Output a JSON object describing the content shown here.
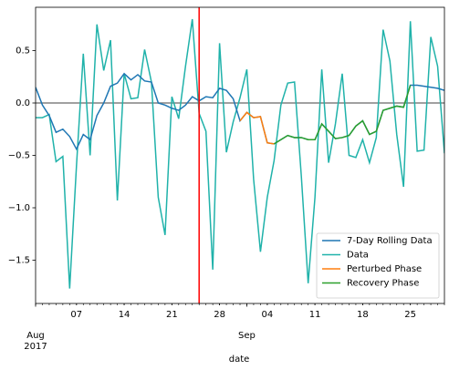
{
  "chart_data": {
    "type": "line",
    "xlabel": "date",
    "x": [
      "2017-08-01",
      "2017-08-02",
      "2017-08-03",
      "2017-08-04",
      "2017-08-05",
      "2017-08-06",
      "2017-08-07",
      "2017-08-08",
      "2017-08-09",
      "2017-08-10",
      "2017-08-11",
      "2017-08-12",
      "2017-08-13",
      "2017-08-14",
      "2017-08-15",
      "2017-08-16",
      "2017-08-17",
      "2017-08-18",
      "2017-08-19",
      "2017-08-20",
      "2017-08-21",
      "2017-08-22",
      "2017-08-23",
      "2017-08-24",
      "2017-08-25",
      "2017-08-26",
      "2017-08-27",
      "2017-08-28",
      "2017-08-29",
      "2017-08-30",
      "2017-08-31",
      "2017-09-01",
      "2017-09-02",
      "2017-09-03",
      "2017-09-04",
      "2017-09-05",
      "2017-09-06",
      "2017-09-07",
      "2017-09-08",
      "2017-09-09",
      "2017-09-10",
      "2017-09-11",
      "2017-09-12",
      "2017-09-13",
      "2017-09-14",
      "2017-09-15",
      "2017-09-16",
      "2017-09-17",
      "2017-09-18",
      "2017-09-19",
      "2017-09-20",
      "2017-09-21",
      "2017-09-22",
      "2017-09-23",
      "2017-09-24",
      "2017-09-25",
      "2017-09-26",
      "2017-09-27",
      "2017-09-28",
      "2017-09-29",
      "2017-09-30"
    ],
    "series": [
      {
        "name": "7-Day Rolling Data",
        "color": "#1f77b4",
        "values": [
          0.15,
          -0.02,
          -0.12,
          -0.28,
          -0.25,
          -0.32,
          -0.44,
          -0.3,
          -0.35,
          -0.12,
          0.0,
          0.16,
          0.19,
          0.28,
          0.22,
          0.27,
          0.21,
          0.2,
          0.0,
          -0.02,
          -0.05,
          -0.07,
          -0.02,
          0.06,
          0.02,
          0.06,
          0.05,
          0.14,
          0.12,
          0.04,
          -0.17,
          -0.09,
          -0.14,
          -0.13,
          -0.38,
          -0.39,
          -0.35,
          -0.31,
          -0.33,
          -0.33,
          -0.35,
          -0.35,
          -0.2,
          -0.27,
          -0.34,
          -0.33,
          -0.31,
          -0.22,
          -0.17,
          -0.3,
          -0.27,
          -0.07,
          -0.05,
          -0.03,
          -0.04,
          0.17,
          0.17,
          0.16,
          0.15,
          0.14,
          0.12
        ]
      },
      {
        "name": "Data",
        "color": "#20b2aa",
        "values": [
          -0.14,
          -0.14,
          -0.11,
          -0.56,
          -0.51,
          -1.77,
          -0.6,
          0.47,
          -0.5,
          0.75,
          0.31,
          0.6,
          -0.93,
          0.28,
          0.04,
          0.05,
          0.51,
          0.2,
          -0.9,
          -1.26,
          0.06,
          -0.15,
          0.35,
          0.8,
          -0.1,
          -0.27,
          -1.59,
          0.57,
          -0.47,
          -0.18,
          0.05,
          0.32,
          -0.73,
          -1.42,
          -0.9,
          -0.55,
          -0.02,
          0.19,
          0.2,
          -0.7,
          -1.72,
          -0.9,
          0.32,
          -0.57,
          -0.2,
          0.28,
          -0.5,
          -0.52,
          -0.35,
          -0.57,
          -0.33,
          0.7,
          0.4,
          -0.3,
          -0.8,
          0.78,
          -0.46,
          -0.45,
          0.63,
          0.35,
          -0.48
        ]
      },
      {
        "name": "Perturbed Phase",
        "color": "#ff7f0e",
        "values": [
          null,
          null,
          null,
          null,
          null,
          null,
          null,
          null,
          null,
          null,
          null,
          null,
          null,
          null,
          null,
          null,
          null,
          null,
          null,
          null,
          null,
          null,
          null,
          null,
          null,
          null,
          null,
          null,
          null,
          null,
          -0.17,
          -0.09,
          -0.14,
          -0.13,
          -0.38,
          -0.39,
          null,
          null,
          null,
          null,
          null,
          null,
          null,
          null,
          null,
          null,
          null,
          null,
          null,
          null,
          null,
          null,
          null,
          null,
          null,
          null,
          null,
          null,
          null,
          null,
          null
        ]
      },
      {
        "name": "Recovery Phase",
        "color": "#2ca02c",
        "values": [
          null,
          null,
          null,
          null,
          null,
          null,
          null,
          null,
          null,
          null,
          null,
          null,
          null,
          null,
          null,
          null,
          null,
          null,
          null,
          null,
          null,
          null,
          null,
          null,
          null,
          null,
          null,
          null,
          null,
          null,
          null,
          null,
          null,
          null,
          null,
          -0.39,
          -0.35,
          -0.31,
          -0.33,
          -0.33,
          -0.35,
          -0.35,
          -0.2,
          -0.27,
          -0.34,
          -0.33,
          -0.31,
          -0.22,
          -0.17,
          -0.3,
          -0.27,
          -0.07,
          -0.05,
          -0.03,
          -0.04,
          0.17,
          null,
          null,
          null,
          null,
          null
        ]
      }
    ],
    "xlim": [
      "2017-08-01",
      "2017-09-30"
    ],
    "ylim": [
      -1.913,
      0.913
    ],
    "yticks": [
      0.5,
      {
        "value": 0,
        "label": "0.0"
      },
      {
        "value": -0.5,
        "label": "−0.5"
      },
      {
        "value": -1.0,
        "label": "−1.0"
      },
      {
        "value": -1.5,
        "label": "−1.5"
      }
    ],
    "xticks": [
      {
        "value": "2017-08-07",
        "label": "07"
      },
      {
        "value": "2017-08-14",
        "label": "14"
      },
      {
        "value": "2017-08-21",
        "label": "21"
      },
      {
        "value": "2017-08-28",
        "label": "28"
      },
      {
        "value": "2017-09-04",
        "label": "04"
      },
      {
        "value": "2017-09-11",
        "label": "11"
      },
      {
        "value": "2017-09-18",
        "label": "18"
      },
      {
        "value": "2017-09-25",
        "label": "25"
      }
    ],
    "xticks_major": [
      {
        "value": "2017-08-01",
        "label": [
          "Aug",
          "2017"
        ]
      },
      {
        "value": "2017-09-01",
        "label": [
          "Sep"
        ]
      }
    ],
    "hline": {
      "value": 0,
      "color": "#808080"
    },
    "vline": {
      "value": "2017-08-25",
      "color": "#ff0000"
    },
    "legend": "lower right"
  }
}
